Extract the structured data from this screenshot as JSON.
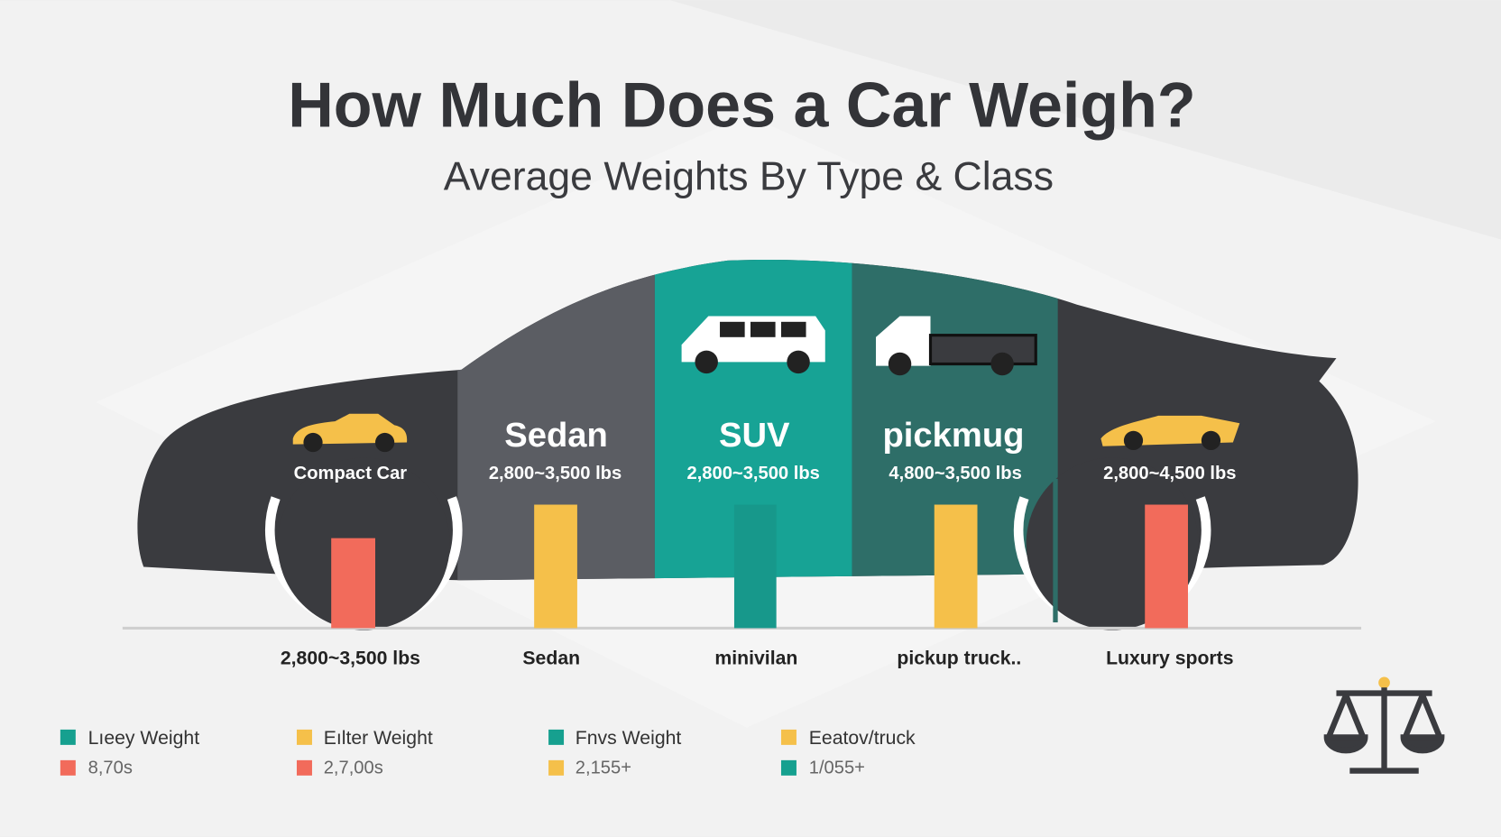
{
  "title": "How Much Does a Car Weigh?",
  "subtitle": "Average Weights By Type & Class",
  "panels": [
    {
      "label": "Compact Car"
    },
    {
      "heading": "Sedan",
      "range": "2,800~3,500 lbs"
    },
    {
      "heading": "SUV",
      "range": "2,800~3,500 lbs"
    },
    {
      "heading": "pickmug",
      "range": "4,800~3,500 lbs"
    },
    {
      "range": "2,800~4,500 lbs"
    }
  ],
  "bottom_labels": [
    "2,800~3,500 lbs",
    "Sedan",
    "minivilan",
    "pickup truck..",
    "Luxury sports"
  ],
  "legend": [
    {
      "label": "Lıeey Weight",
      "value": "8,70s"
    },
    {
      "label": "Eılter Weight",
      "value": "2,7,00s"
    },
    {
      "label": "Fnvs Weight",
      "value": "2,155+"
    },
    {
      "label": "Eeatov/truck",
      "value": "1/055+"
    }
  ]
}
